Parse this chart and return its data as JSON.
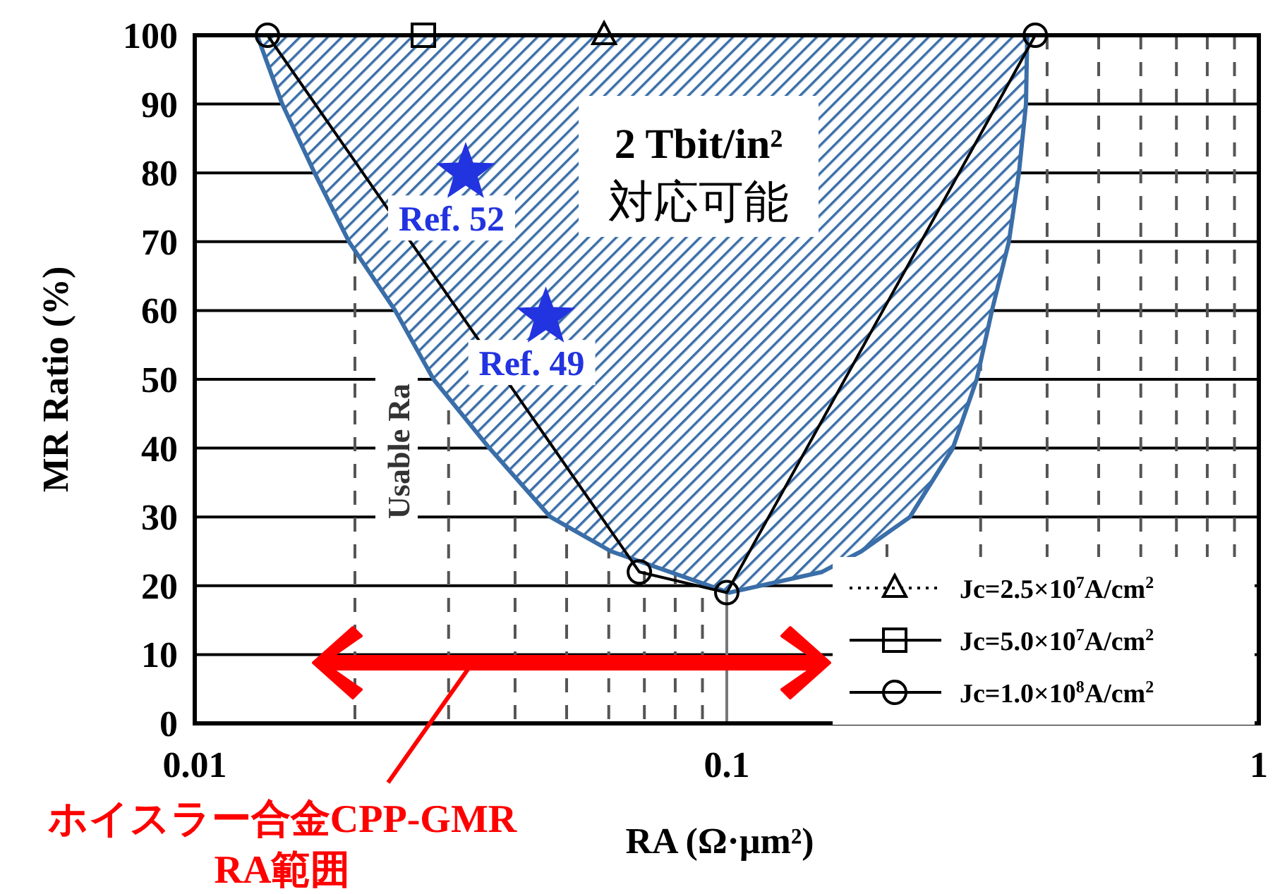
{
  "chart_data": {
    "type": "line",
    "xlabel": "RA (Ω·μm²)",
    "ylabel": "MR Ratio (%)",
    "log": "x",
    "xlim": [
      0.01,
      1
    ],
    "xticks": [
      0.01,
      0.1,
      1
    ],
    "ylim": [
      0,
      100
    ],
    "yticks": [
      0,
      10,
      20,
      30,
      40,
      50,
      60,
      70,
      80,
      90,
      100
    ],
    "grid": true,
    "legend": "bottom right",
    "series": [
      {
        "color": "#3a6ea8",
        "x": [
          0.0131,
          0.0146,
          0.0168,
          0.0195,
          0.0238,
          0.0281,
          0.0358,
          0.0466,
          0.0606,
          0.101,
          0.151,
          0.179,
          0.221,
          0.266,
          0.295,
          0.315,
          0.339,
          0.354,
          0.365,
          0.367
        ],
        "values": [
          100,
          90,
          80,
          70,
          60,
          50,
          40,
          30,
          25,
          19,
          22,
          25,
          30,
          40,
          50,
          60,
          70,
          80,
          90,
          100
        ],
        "lower": [
          100,
          90,
          80,
          70,
          60,
          50,
          40,
          30,
          25,
          19,
          22,
          25,
          30,
          40,
          50,
          60,
          70,
          80,
          90,
          100
        ],
        "upper": [
          100,
          100,
          100,
          100,
          100,
          100,
          100,
          100,
          100,
          100,
          100,
          100,
          100,
          100,
          100,
          100,
          100,
          100,
          100,
          100
        ]
      },
      {
        "name": "Jc=2.5×10$^{7}$A/cm$^{2}$",
        "color": "#000000",
        "marker": "triangle",
        "line_style": "dotted",
        "x": [
          0.0588
        ],
        "values": [
          100
        ]
      },
      {
        "name": "Jc=5.0×10$^{7}$A/cm$^{2}$",
        "color": "#000000",
        "marker": "square",
        "line_style": "solid",
        "x": [
          0.0269
        ],
        "values": [
          100
        ]
      },
      {
        "name": "Jc=1.0×10$^{8}$A/cm$^{2}$",
        "color": "#000000",
        "marker": "circle",
        "line_style": "solid",
        "x": [
          0.0137,
          0.0685,
          0.1,
          0.38
        ],
        "values": [
          100,
          22,
          19,
          100
        ]
      },
      {
        "type": "scatter",
        "name": "Ref. 52",
        "color": "#2233e0",
        "marker": "star",
        "x": [
          0.0323
        ],
        "values": [
          80
        ]
      },
      {
        "type": "scatter",
        "name": "Ref. 49",
        "color": "#2233e0",
        "marker": "star",
        "x": [
          0.0457
        ],
        "values": [
          59
        ]
      }
    ],
    "annotations": [
      "2 Tbit/in²\n対応可能",
      "Usable Ra",
      "ホイスラー合金CPP-GMR\nRA範囲"
    ]
  }
}
